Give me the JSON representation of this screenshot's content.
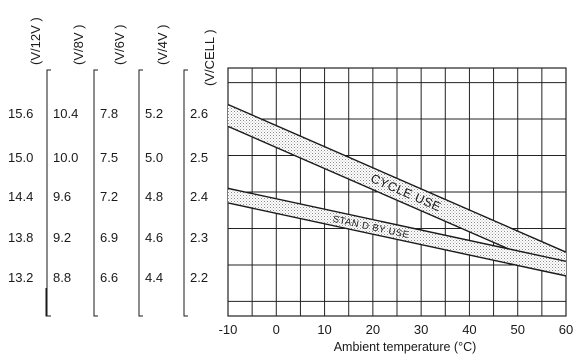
{
  "chart_data": {
    "type": "area",
    "title": "",
    "xlabel": "Ambient  temperature  (°C)",
    "xlim": [
      -10,
      60
    ],
    "x_ticks": [
      "-10",
      "0",
      "10",
      "20",
      "30",
      "40",
      "50",
      "60"
    ],
    "y_cell_lim": [
      2.06,
      2.74
    ],
    "grid": true,
    "voltage_scales": [
      {
        "unit": "(V/12V )",
        "ticks": [
          "15.6",
          "15.0",
          "14.4",
          "13.8",
          "13.2"
        ]
      },
      {
        "unit": "(V/8V )",
        "ticks": [
          "10.4",
          "10.0",
          "9.6",
          "9.2",
          "8.8"
        ]
      },
      {
        "unit": "(V/6V )",
        "ticks": [
          "7.8",
          "7.5",
          "7.2",
          "6.9",
          "6.6"
        ]
      },
      {
        "unit": "(V/4V )",
        "ticks": [
          "5.2",
          "5.0",
          "4.8",
          "4.6",
          "4.4"
        ]
      },
      {
        "unit": "(V/CELL )",
        "ticks": [
          "2.6",
          "2.5",
          "2.4",
          "2.3",
          "2.2"
        ]
      }
    ],
    "series": [
      {
        "name": "CYCLE USE",
        "x": [
          -10,
          60
        ],
        "upper": [
          2.64,
          2.235
        ],
        "lower": [
          2.58,
          2.175
        ]
      },
      {
        "name": "STAN D BY USE",
        "x": [
          -10,
          60
        ],
        "upper": [
          2.41,
          2.21
        ],
        "lower": [
          2.37,
          2.17
        ]
      }
    ],
    "colors": {
      "band_fill": "#d4d4d4",
      "line": "#1a1a1a",
      "grid": "#222222"
    }
  }
}
